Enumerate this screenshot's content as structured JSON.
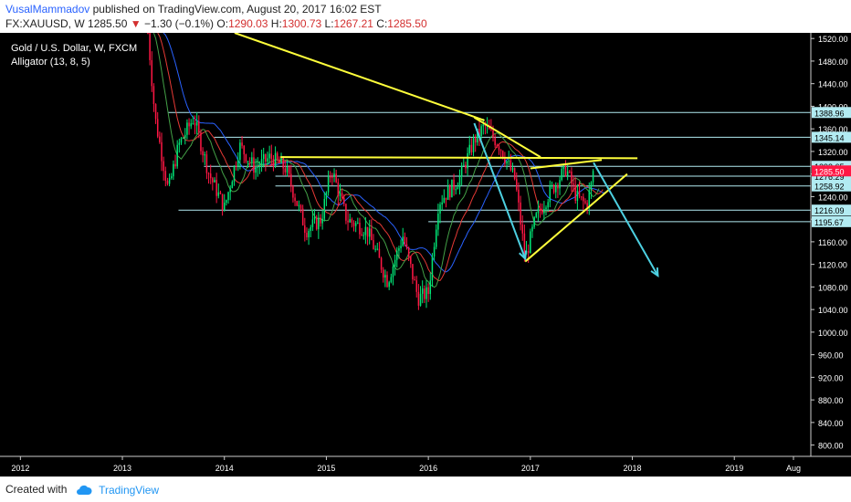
{
  "header": {
    "author": "VusalMammadov",
    "published_text": "published on TradingView.com, August 20, 2017 16:02 EST",
    "symbol": "FX:XAUUSD, W",
    "last": "1285.50",
    "change_arrow": "▼",
    "change": "−1.30 (−0.1%)",
    "open_label": "O:",
    "open": "1290.03",
    "high_label": "H:",
    "high": "1300.73",
    "low_label": "L:",
    "low": "1267.21",
    "close_label": "C:",
    "close": "1285.50"
  },
  "legend": {
    "series_title": "Gold / U.S. Dollar, W, FXCM",
    "indicator": "Alligator (13, 8, 5)"
  },
  "footer": {
    "created_with": "Created with",
    "brand": "TradingView"
  },
  "colors": {
    "background": "#000000",
    "up_candle": "#00e676",
    "down_candle": "#ff1744",
    "jaw": "#2962ff",
    "teeth": "#e53935",
    "lips": "#43a047",
    "trendline": "#ffff3b",
    "arrow": "#4dd0e1",
    "level_line": "#b2ebf2",
    "level_badge": "#b2ebf2",
    "last_price_badge": "#ff1744"
  },
  "chart_data": {
    "type": "candlestick",
    "title": "Gold / U.S. Dollar, W, FXCM",
    "ylim": [
      780,
      1530
    ],
    "y_ticks": [
      800,
      840,
      880,
      920,
      960,
      1000,
      1040,
      1080,
      1120,
      1160,
      1200,
      1240,
      1280,
      1320,
      1360,
      1400,
      1440,
      1480,
      1520
    ],
    "y_tick_labels": [
      "800.00",
      "840.00",
      "880.00",
      "920.00",
      "960.00",
      "1000.00",
      "1040.00",
      "1080.00",
      "1120.00",
      "1160.00",
      "1200.00",
      "1240.00",
      "1280.00",
      "1320.00",
      "1360.00",
      "1400.00",
      "1440.00",
      "1480.00",
      "1520.00"
    ],
    "x_range": [
      2011.8,
      2019.75
    ],
    "x_ticks": [
      2012,
      2013,
      2014,
      2015,
      2016,
      2017,
      2018,
      2019,
      2019.58
    ],
    "x_tick_labels": [
      "2012",
      "2013",
      "2014",
      "2015",
      "2016",
      "2017",
      "2018",
      "2019",
      "Aug"
    ],
    "price_path": [
      [
        2013.25,
        1530
      ],
      [
        2013.32,
        1380
      ],
      [
        2013.45,
        1250
      ],
      [
        2013.55,
        1330
      ],
      [
        2013.7,
        1380
      ],
      [
        2013.85,
        1280
      ],
      [
        2014.0,
        1220
      ],
      [
        2014.15,
        1330
      ],
      [
        2014.3,
        1290
      ],
      [
        2014.45,
        1310
      ],
      [
        2014.6,
        1290
      ],
      [
        2014.8,
        1180
      ],
      [
        2014.95,
        1200
      ],
      [
        2015.05,
        1290
      ],
      [
        2015.2,
        1200
      ],
      [
        2015.4,
        1180
      ],
      [
        2015.6,
        1090
      ],
      [
        2015.75,
        1170
      ],
      [
        2015.9,
        1060
      ],
      [
        2016.0,
        1070
      ],
      [
        2016.1,
        1230
      ],
      [
        2016.3,
        1270
      ],
      [
        2016.45,
        1340
      ],
      [
        2016.55,
        1365
      ],
      [
        2016.7,
        1330
      ],
      [
        2016.85,
        1270
      ],
      [
        2016.95,
        1130
      ],
      [
        2017.05,
        1200
      ],
      [
        2017.2,
        1250
      ],
      [
        2017.35,
        1290
      ],
      [
        2017.45,
        1240
      ],
      [
        2017.55,
        1225
      ],
      [
        2017.63,
        1285.5
      ]
    ],
    "horizontal_levels": [
      1388.96,
      1345.14,
      1293.65,
      1276.29,
      1258.92,
      1216.09,
      1195.67
    ],
    "level_labels": [
      "1388.96",
      "1345.14",
      "1293.65",
      "1276.29",
      "1258.92",
      "1216.09",
      "1195.67"
    ],
    "last_price": 1285.5,
    "last_price_label": "1285.50",
    "alligator_params": [
      13,
      8,
      5
    ],
    "drawings": {
      "trendlines": [
        {
          "from": [
            2014.1,
            1530
          ],
          "to": [
            2016.55,
            1375
          ]
        },
        {
          "from": [
            2016.45,
            1380
          ],
          "to": [
            2017.1,
            1310
          ]
        },
        {
          "from": [
            2014.55,
            1310
          ],
          "to": [
            2018.05,
            1308
          ]
        },
        {
          "from": [
            2017.0,
            1290
          ],
          "to": [
            2017.7,
            1305
          ]
        },
        {
          "from": [
            2016.95,
            1125
          ],
          "to": [
            2017.95,
            1280
          ]
        }
      ],
      "arrows": [
        {
          "from": [
            2016.45,
            1370
          ],
          "to": [
            2016.95,
            1130
          ]
        },
        {
          "from": [
            2017.62,
            1300
          ],
          "to": [
            2018.25,
            1100
          ]
        }
      ]
    }
  }
}
